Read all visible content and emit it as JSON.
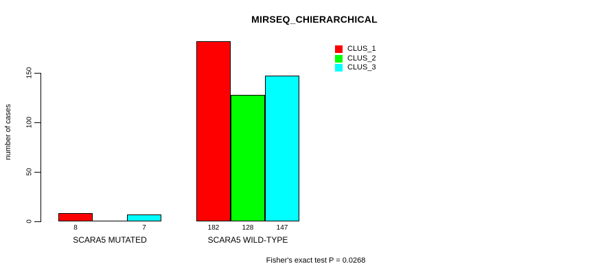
{
  "chart_data": {
    "type": "bar",
    "title": "MIRSEQ_CHIERARCHICAL",
    "ylabel": "number of cases",
    "xlabel": "",
    "annotation": "Fisher's exact test P = 0.0268",
    "groups": [
      "SCARA5 MUTATED",
      "SCARA5 WILD-TYPE"
    ],
    "series": [
      {
        "name": "CLUS_1",
        "color": "#FF0000",
        "values": [
          8,
          182
        ]
      },
      {
        "name": "CLUS_2",
        "color": "#00FF00",
        "values": [
          0,
          128
        ]
      },
      {
        "name": "CLUS_3",
        "color": "#00FFFF",
        "values": [
          7,
          147
        ]
      }
    ],
    "bar_labels": [
      [
        "8",
        "",
        "7"
      ],
      [
        "182",
        "128",
        "147"
      ]
    ],
    "yticks": [
      "0",
      "50",
      "100",
      "150"
    ],
    "ytick_values": [
      0,
      50,
      100,
      150
    ],
    "ylim": [
      0,
      150
    ],
    "legend_position": "top-right",
    "grid": false,
    "axis_color": "#000000",
    "background_color": "#FFFFFF"
  }
}
